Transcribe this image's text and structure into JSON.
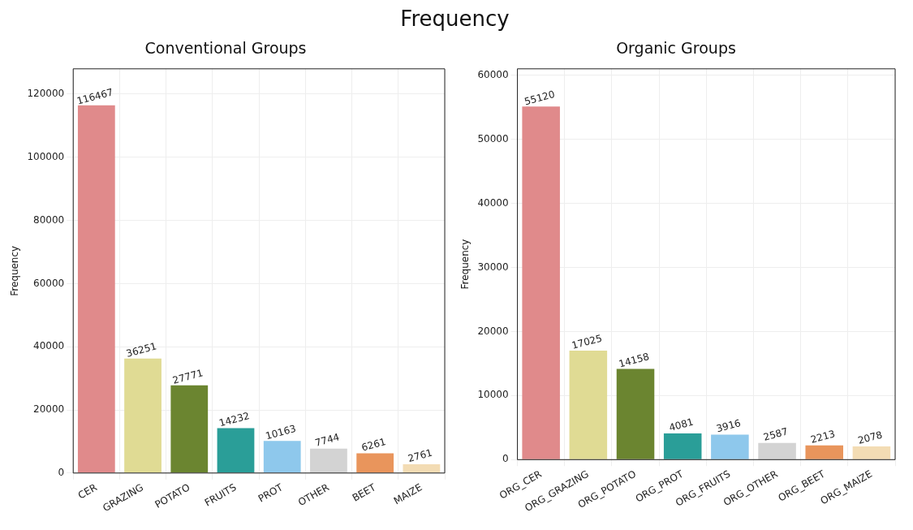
{
  "chart_data": [
    {
      "type": "bar",
      "title": "Conventional Groups",
      "ylabel": "Frequency",
      "annotations": [
        "Frequency"
      ],
      "categories": [
        "CER",
        "GRAZING",
        "POTATO",
        "FRUITS",
        "PROT",
        "OTHER",
        "BEET",
        "MAIZE"
      ],
      "values": [
        116467,
        36251,
        27771,
        14232,
        10163,
        7744,
        6261,
        2761
      ],
      "colors": [
        "#e08a8b",
        "#e0db94",
        "#6b8530",
        "#2a9e98",
        "#8ec8ec",
        "#d3d3d3",
        "#e9955c",
        "#f3dcb4"
      ],
      "ylim": [
        0,
        128000
      ],
      "yticks": [
        0,
        20000,
        40000,
        60000,
        80000,
        100000,
        120000
      ],
      "grid": true,
      "data_labels": true
    },
    {
      "type": "bar",
      "title": "Organic Groups",
      "ylabel": "Frequency",
      "categories": [
        "ORG_CER",
        "ORG_GRAZING",
        "ORG_POTATO",
        "ORG_PROT",
        "ORG_FRUITS",
        "ORG_OTHER",
        "ORG_BEET",
        "ORG_MAIZE"
      ],
      "values": [
        55120,
        17025,
        14158,
        4081,
        3916,
        2587,
        2213,
        2078
      ],
      "colors": [
        "#e08a8b",
        "#e0db94",
        "#6b8530",
        "#2a9e98",
        "#8ec8ec",
        "#d3d3d3",
        "#e9955c",
        "#f3dcb4"
      ],
      "ylim": [
        0,
        61000
      ],
      "yticks": [
        0,
        10000,
        20000,
        30000,
        40000,
        50000,
        60000
      ],
      "grid": true,
      "data_labels": true
    }
  ]
}
